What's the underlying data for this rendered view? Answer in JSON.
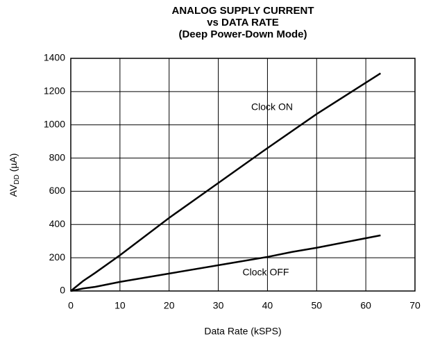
{
  "chart_data": {
    "type": "line",
    "title_lines": [
      "ANALOG SUPPLY CURRENT",
      "vs DATA RATE",
      "(Deep Power-Down Mode)"
    ],
    "xlabel": "Data Rate (kSPS)",
    "ylabel_parts": [
      "AV",
      "DD",
      " (µA)"
    ],
    "xlim": [
      0,
      70
    ],
    "xticks": [
      0,
      10,
      20,
      30,
      40,
      50,
      60,
      70
    ],
    "ylim": [
      0,
      1400
    ],
    "yticks": [
      0,
      200,
      400,
      600,
      800,
      1000,
      1200,
      1400
    ],
    "grid": true,
    "series": [
      {
        "name": "Clock ON",
        "color": "#000000",
        "x": [
          0,
          2.5,
          5,
          10,
          20,
          30,
          40,
          50,
          63
        ],
        "values": [
          0,
          60,
          110,
          215,
          440,
          650,
          860,
          1065,
          1310
        ]
      },
      {
        "name": "Clock OFF",
        "color": "#000000",
        "x": [
          0,
          2.5,
          5,
          10,
          20,
          30,
          40,
          45,
          50,
          63
        ],
        "values": [
          0,
          15,
          25,
          55,
          105,
          155,
          205,
          235,
          260,
          335
        ]
      }
    ]
  }
}
